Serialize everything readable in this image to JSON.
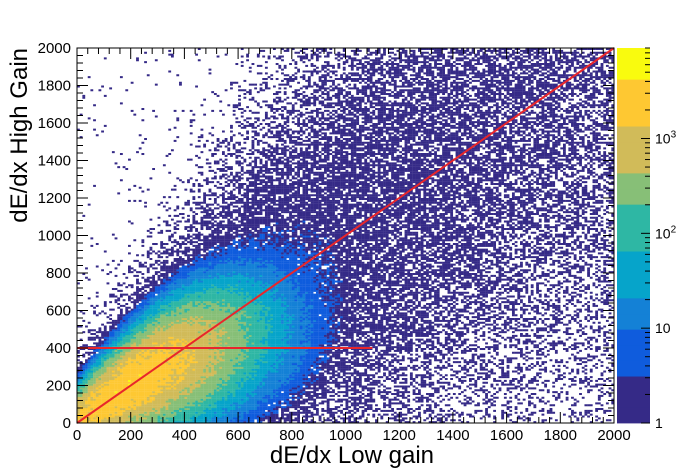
{
  "chart_data": {
    "type": "heatmap",
    "title": "",
    "xlabel": "dE/dx Low gain",
    "ylabel": "dE/dx High Gain",
    "xlim": [
      0,
      2000
    ],
    "ylim": [
      0,
      2000
    ],
    "x_ticks": [
      "0",
      "200",
      "400",
      "600",
      "800",
      "1000",
      "1200",
      "1400",
      "1600",
      "1800",
      "2000"
    ],
    "y_ticks": [
      "0",
      "200",
      "400",
      "600",
      "800",
      "1000",
      "1200",
      "1400",
      "1600",
      "1800",
      "2000"
    ],
    "colorbar": {
      "scale": "log",
      "range": [
        1,
        9000
      ],
      "labels": [
        {
          "value": 1,
          "base": "1",
          "exp": ""
        },
        {
          "value": 10,
          "base": "10",
          "exp": ""
        },
        {
          "value": 100,
          "base": "10",
          "exp": "2"
        },
        {
          "value": 1000,
          "base": "10",
          "exp": "3"
        }
      ],
      "colors": [
        "#352a87",
        "#0f5cdd",
        "#1481d6",
        "#06a4ca",
        "#2eb7a4",
        "#87bf77",
        "#d1bb59",
        "#fec832",
        "#f9fb0e"
      ]
    },
    "distribution": {
      "main_band": {
        "relation": "y = x",
        "dense_peak": [
          220,
          220
        ],
        "dense_extent_x": [
          0,
          900
        ]
      },
      "sparse_region_x": [
        0,
        2000
      ],
      "horizontal_streak": {
        "y": 400,
        "x_range": [
          0,
          1100
        ]
      }
    },
    "reference_lines": [
      {
        "from": [
          0,
          0
        ],
        "to": [
          2000,
          2000
        ],
        "color": "#e8262b"
      },
      {
        "from": [
          0,
          400
        ],
        "to": [
          1100,
          400
        ],
        "color": "#e8262b"
      }
    ]
  }
}
